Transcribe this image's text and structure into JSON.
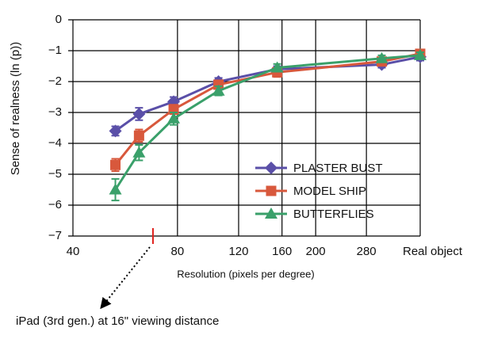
{
  "chart_data": {
    "type": "line",
    "y_label": "Sense of realness (ln (p))",
    "x_label": "Resolution (pixels per degree)",
    "log_x": true,
    "grid": true,
    "xlim": [
      40,
      400
    ],
    "xticks": [
      40,
      80,
      120,
      160,
      200,
      280,
      {
        "value": 400,
        "label": "Real object"
      }
    ],
    "ylim": [
      -7,
      0
    ],
    "yticks": [
      0,
      {
        "value": -1,
        "label": "−1"
      },
      {
        "value": -2,
        "label": "−2"
      },
      {
        "value": -3,
        "label": "−3"
      },
      {
        "value": -4,
        "label": "−4"
      },
      {
        "value": -5,
        "label": "−5"
      },
      {
        "value": -6,
        "label": "−6"
      },
      {
        "value": -7,
        "label": "−7"
      }
    ],
    "x": [
      53,
      62,
      78,
      105,
      155,
      310,
      400
    ],
    "series": [
      {
        "name": "PLASTER BUST",
        "color": "#5a4fa8",
        "marker": "diamond",
        "values": [
          -3.6,
          -3.05,
          -2.65,
          -2.0,
          -1.6,
          -1.45,
          -1.2
        ],
        "errors": [
          0.15,
          0.2,
          0.15,
          0.12,
          0.1,
          0.1,
          0.12
        ]
      },
      {
        "name": "MODEL SHIP",
        "color": "#d8583c",
        "marker": "square",
        "values": [
          -4.7,
          -3.75,
          -2.9,
          -2.1,
          -1.7,
          -1.35,
          -1.1
        ],
        "errors": [
          0.2,
          0.2,
          0.15,
          0.12,
          0.15,
          0.1,
          0.1
        ]
      },
      {
        "name": "BUTTERFLIES",
        "color": "#3aa06a",
        "marker": "triangle",
        "values": [
          -5.5,
          -4.3,
          -3.2,
          -2.3,
          -1.55,
          -1.25,
          -1.15
        ],
        "errors": [
          0.35,
          0.25,
          0.2,
          0.15,
          0.12,
          0.1,
          0.1
        ]
      }
    ],
    "annotation": {
      "text": "iPad (3rd gen.) at 16\" viewing distance",
      "x": 68,
      "color": "#e0201c"
    }
  }
}
